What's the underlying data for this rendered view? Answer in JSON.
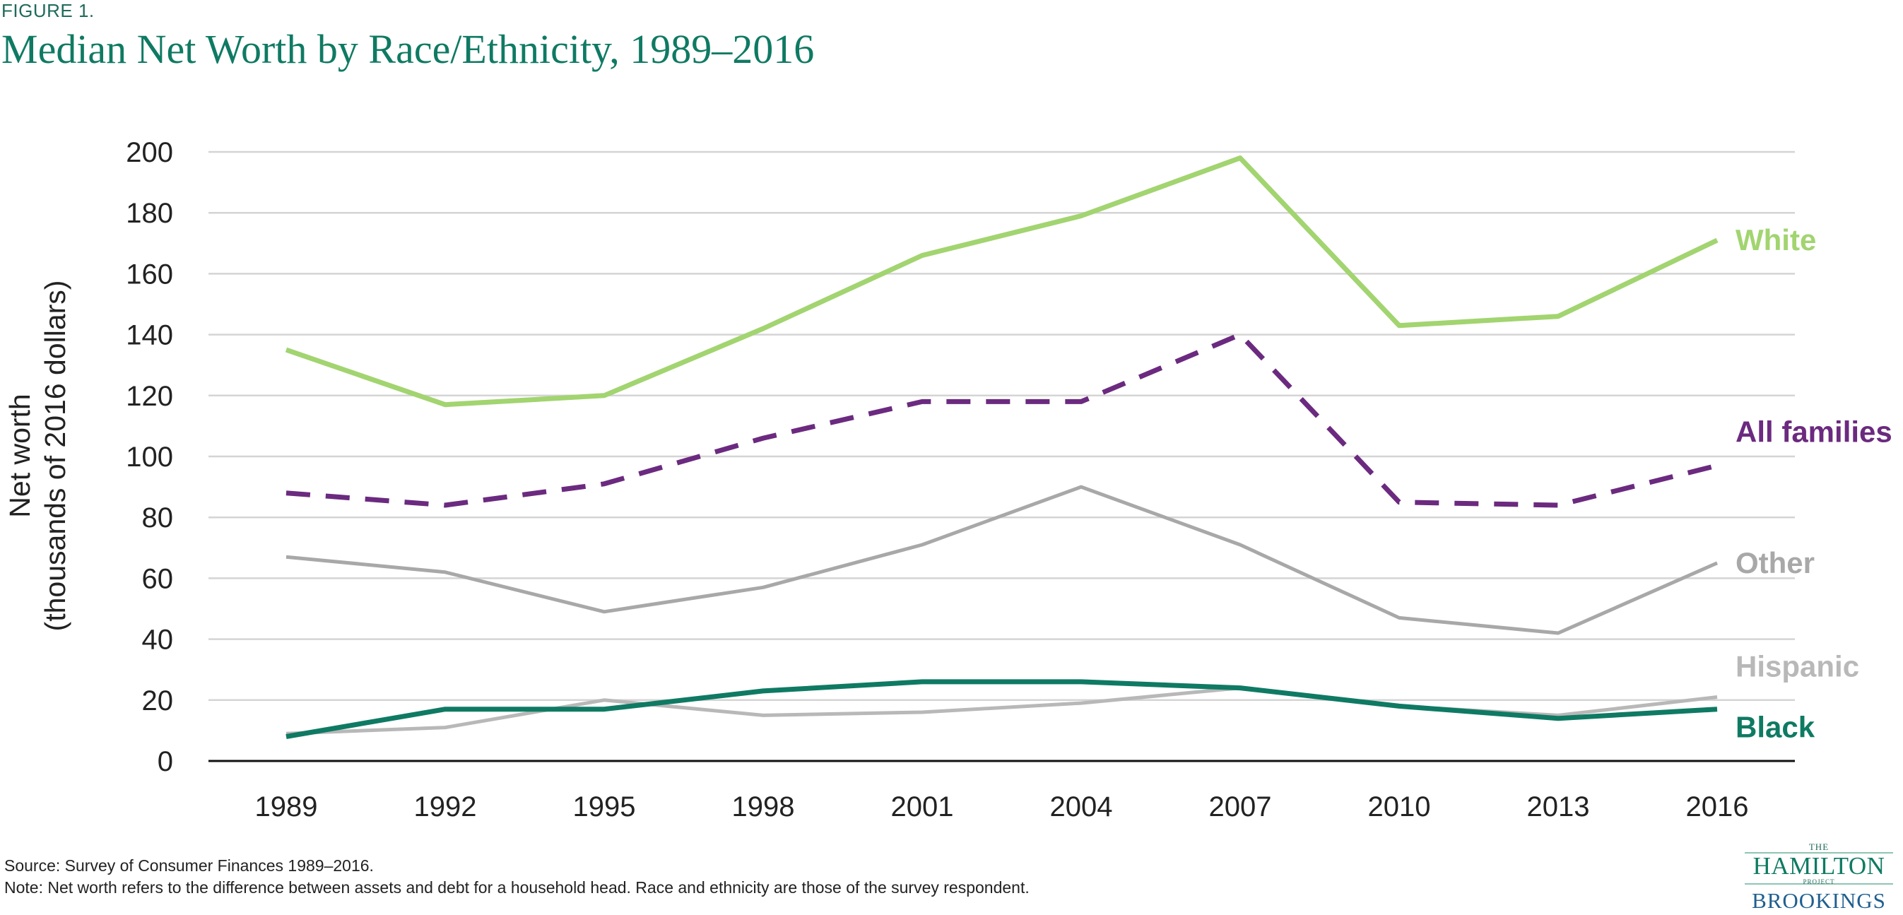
{
  "figure_label": "FIGURE 1.",
  "title": "Median Net Worth by Race/Ethnicity, 1989–2016",
  "footnotes": {
    "source": "Source: Survey of Consumer Finances 1989–2016.",
    "note": "Note: Net worth refers to the difference between assets and debt for a household head. Race and ethnicity are those of the survey respondent."
  },
  "logo": {
    "the": "THE",
    "hamilton": "HAMILTON",
    "project": "PROJECT",
    "brookings": "BROOKINGS"
  },
  "chart_data": {
    "type": "line",
    "title": "Median Net Worth by Race/Ethnicity, 1989–2016",
    "xlabel": "",
    "ylabel_line1": "Net worth",
    "ylabel_line2": "(thousands of 2016 dollars)",
    "ylim": [
      0,
      200
    ],
    "yticks": [
      0,
      20,
      40,
      60,
      80,
      100,
      120,
      140,
      160,
      180,
      200
    ],
    "grid": true,
    "legend": "direct labels at right end of each line",
    "categories": [
      "1989",
      "1992",
      "1995",
      "1998",
      "2001",
      "2004",
      "2007",
      "2010",
      "2013",
      "2016"
    ],
    "series": [
      {
        "key": "white",
        "name": "White",
        "color": "#a2d470",
        "style": "solid",
        "values": [
          135,
          117,
          120,
          142,
          166,
          179,
          198,
          143,
          146,
          171
        ]
      },
      {
        "key": "all-families",
        "name": "All families",
        "color": "#6b2a7f",
        "style": "dashed",
        "values": [
          88,
          84,
          91,
          106,
          118,
          118,
          140,
          85,
          84,
          97
        ]
      },
      {
        "key": "other",
        "name": "Other",
        "color": "#a8a8a8",
        "style": "solid",
        "values": [
          67,
          62,
          49,
          57,
          71,
          90,
          71,
          47,
          42,
          65
        ]
      },
      {
        "key": "hispanic",
        "name": "Hispanic",
        "color": "#b8b8b8",
        "style": "solid",
        "values": [
          9,
          11,
          20,
          15,
          16,
          19,
          24,
          18,
          15,
          21
        ]
      },
      {
        "key": "black",
        "name": "Black",
        "color": "#0f7a63",
        "style": "solid",
        "values": [
          8,
          17,
          17,
          23,
          26,
          26,
          24,
          18,
          14,
          17
        ]
      }
    ],
    "label_colors": {
      "white": "#a2d470",
      "all-families": "#6b2a7f",
      "other": "#a8a8a8",
      "hispanic": "#b8b8b8",
      "black": "#0f7a63"
    }
  }
}
